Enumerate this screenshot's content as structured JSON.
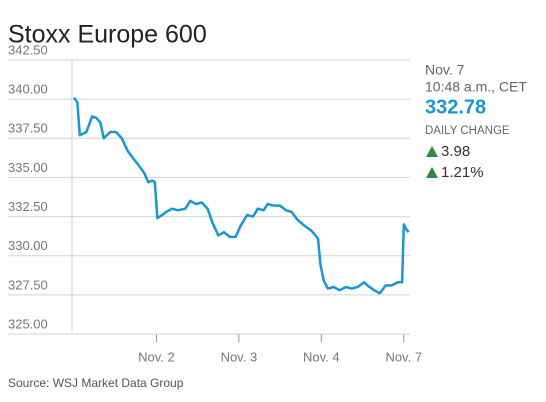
{
  "chart_data": {
    "type": "line",
    "title": "Stoxx Europe 600",
    "source": "Source: WSJ Market Data Group",
    "info": {
      "date": "Nov. 7",
      "time": "10:48 a.m., CET",
      "price": "332.78",
      "change_label": "DAILY CHANGE",
      "change": "3.98",
      "change_pct": "1.21%"
    },
    "xlim": [
      0,
      4.1
    ],
    "xticks": [
      {
        "value": 1,
        "label": "Nov. 2"
      },
      {
        "value": 2,
        "label": "Nov. 3"
      },
      {
        "value": 3,
        "label": "Nov. 4"
      },
      {
        "value": 4,
        "label": "Nov. 7"
      }
    ],
    "ylim": [
      325,
      342.5
    ],
    "yticks": [
      {
        "value": 342.5,
        "label": "342.50"
      },
      {
        "value": 340,
        "label": "340.00"
      },
      {
        "value": 337.5,
        "label": "337.50"
      },
      {
        "value": 335,
        "label": "335.00"
      },
      {
        "value": 332.5,
        "label": "332.50"
      },
      {
        "value": 330,
        "label": "330.00"
      },
      {
        "value": 327.5,
        "label": "327.50"
      },
      {
        "value": 325,
        "label": "325.00"
      }
    ],
    "grid": true,
    "x": [
      0,
      0.04,
      0.07,
      0.15,
      0.22,
      0.27,
      0.32,
      0.36,
      0.44,
      0.51,
      0.58,
      0.65,
      0.72,
      0.78,
      0.85,
      0.9,
      0.95,
      0.98,
      1.01,
      1.07,
      1.12,
      1.19,
      1.26,
      1.35,
      1.41,
      1.48,
      1.55,
      1.62,
      1.68,
      1.75,
      1.82,
      1.89,
      1.96,
      2.02,
      2.1,
      2.17,
      2.23,
      2.3,
      2.35,
      2.42,
      2.5,
      2.57,
      2.64,
      2.71,
      2.8,
      2.88,
      2.96,
      2.99,
      3.03,
      3.08,
      3.15,
      3.22,
      3.3,
      3.37,
      3.44,
      3.52,
      3.56,
      3.64,
      3.71,
      3.78,
      3.85,
      3.93,
      3.98,
      4.0,
      4.03,
      4.06
    ],
    "series": [
      {
        "color": "#1a96d4",
        "values": [
          340.1,
          339.8,
          337.7,
          337.9,
          338.9,
          338.8,
          338.5,
          337.5,
          337.9,
          337.9,
          337.5,
          336.7,
          336.2,
          335.8,
          335.3,
          334.7,
          334.8,
          334.7,
          332.4,
          332.6,
          332.8,
          333.0,
          332.9,
          333.0,
          333.5,
          333.3,
          333.4,
          333.0,
          332.1,
          331.3,
          331.5,
          331.2,
          331.2,
          331.9,
          332.6,
          332.5,
          333.0,
          332.9,
          333.3,
          333.2,
          333.2,
          332.9,
          332.8,
          332.3,
          331.9,
          331.6,
          331.1,
          329.4,
          328.4,
          327.9,
          328.0,
          327.8,
          328.0,
          327.9,
          328.0,
          328.3,
          328.1,
          327.8,
          327.6,
          328.1,
          328.1,
          328.3,
          328.3,
          332.0,
          331.7,
          331.5
        ]
      }
    ]
  }
}
